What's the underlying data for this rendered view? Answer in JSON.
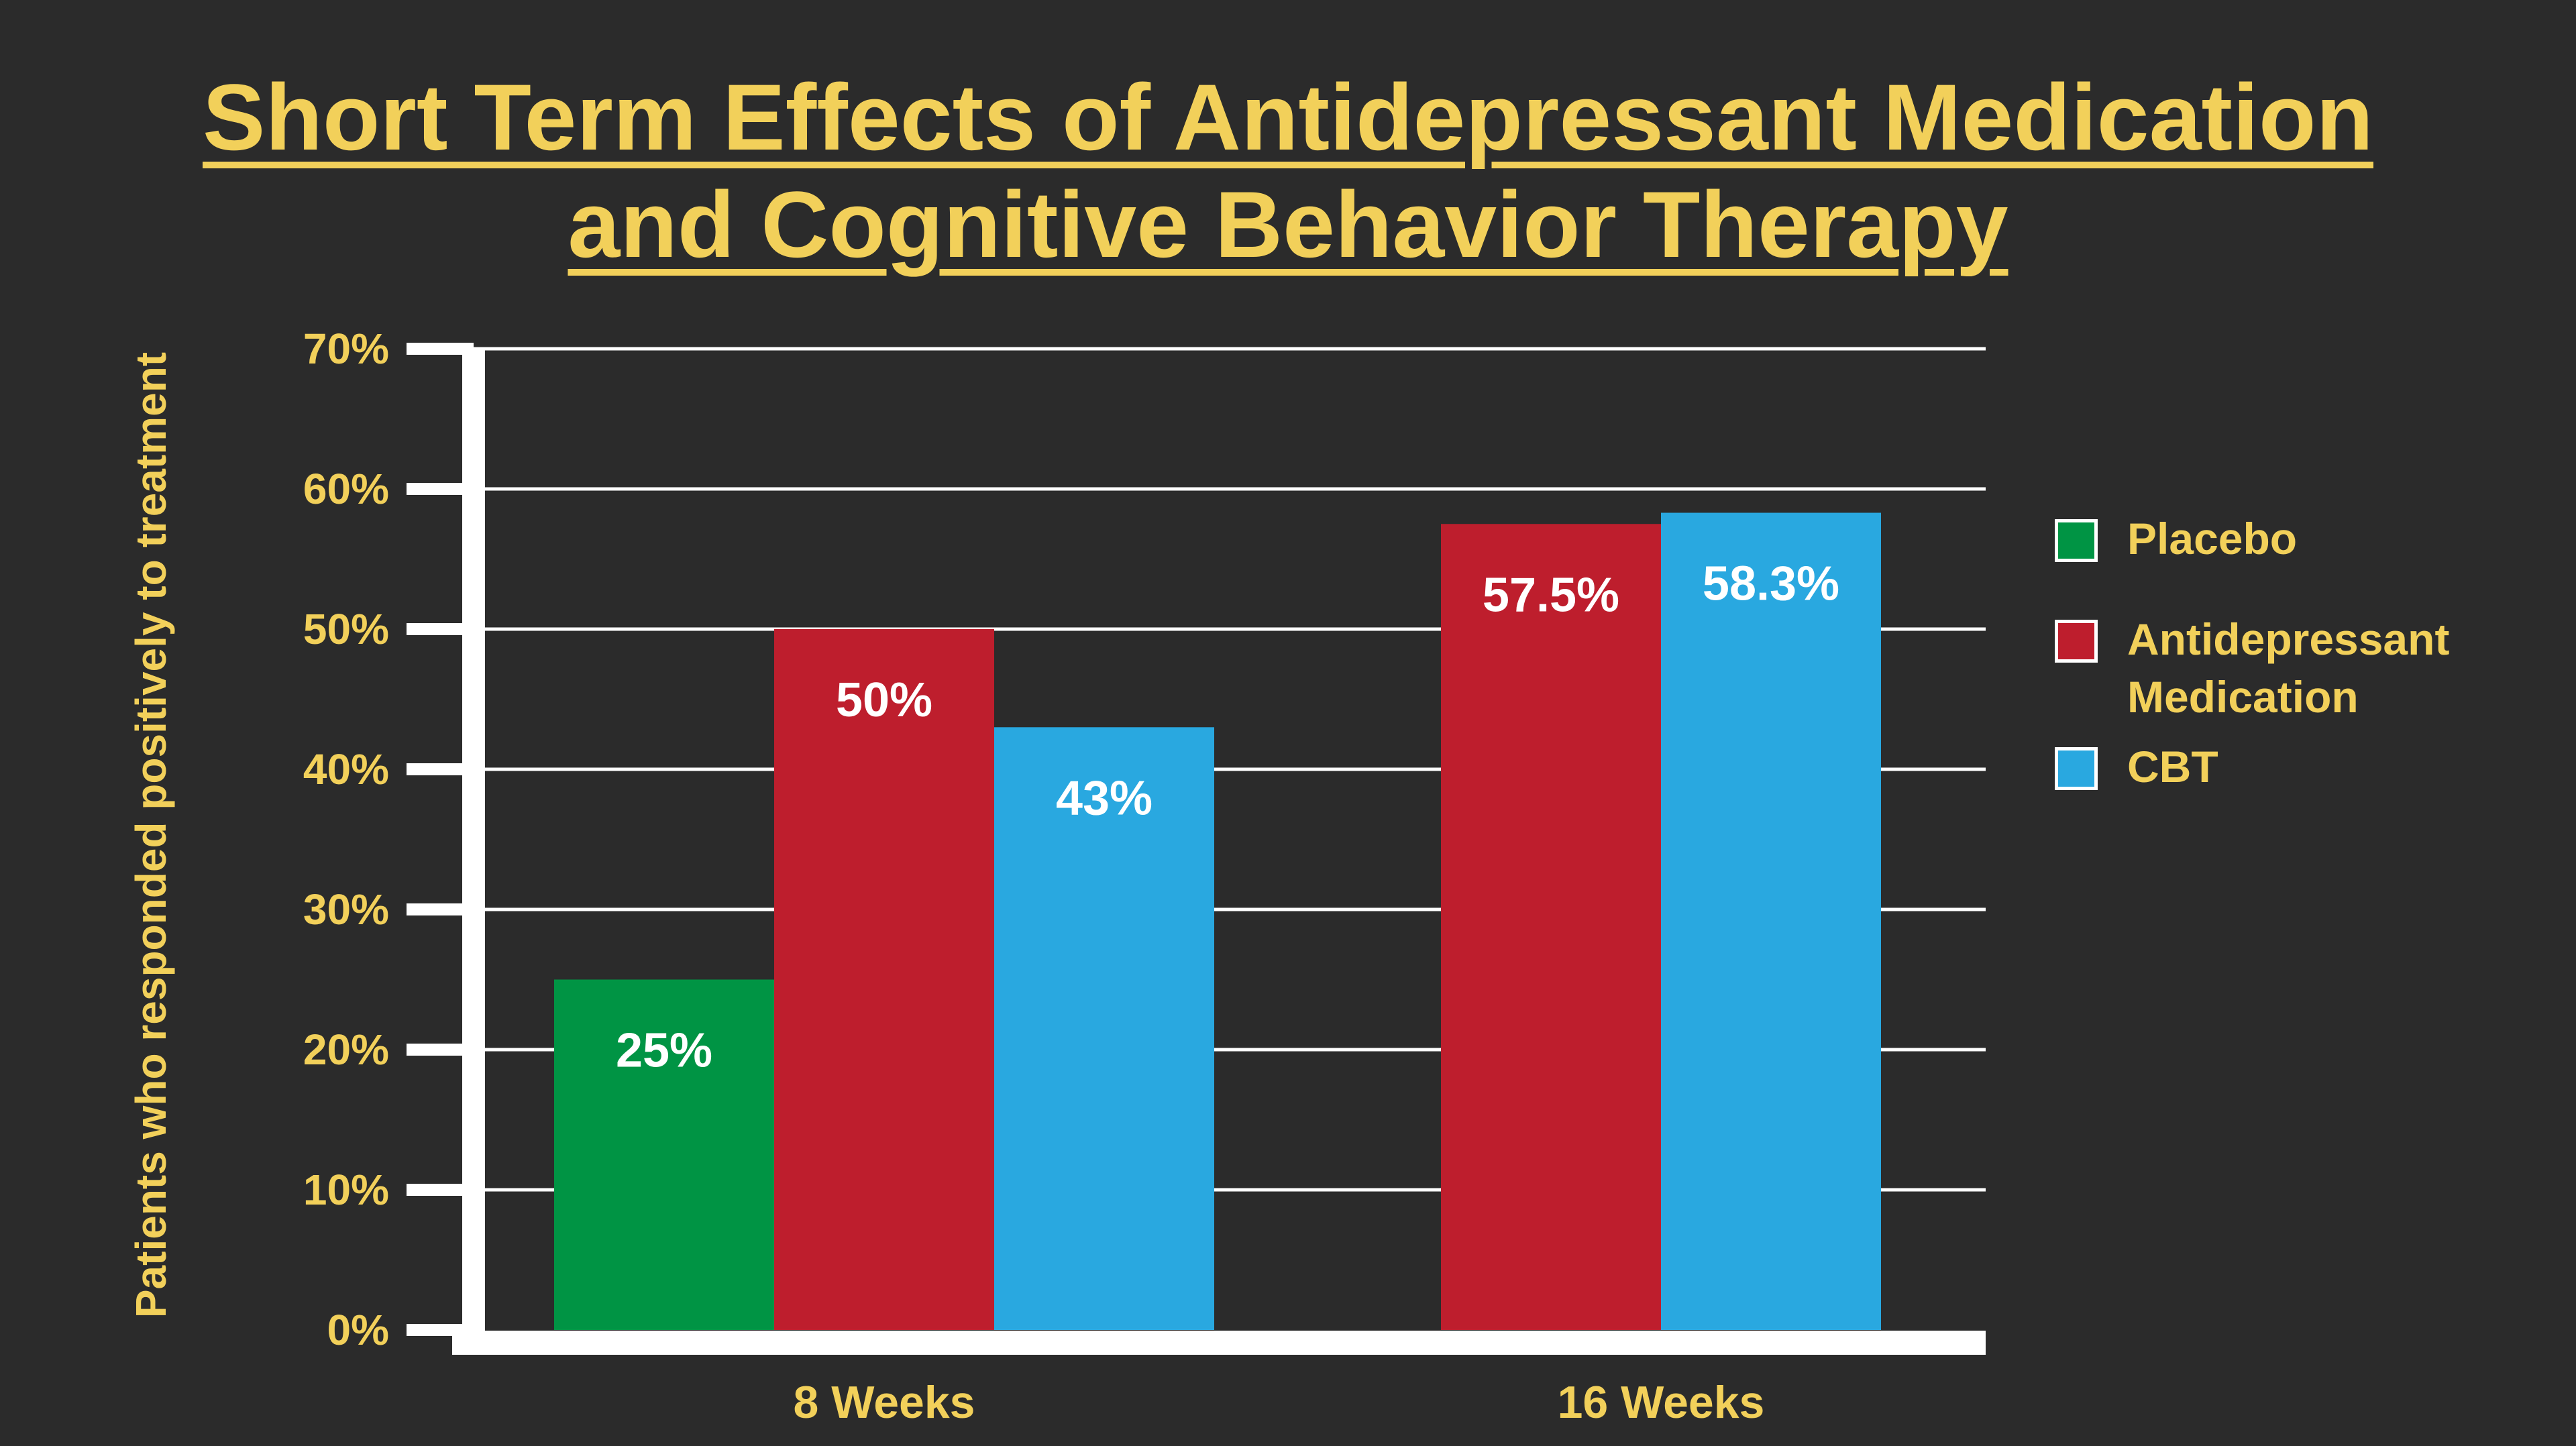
{
  "chart_data": {
    "type": "bar",
    "title_lines": [
      "Short Term Effects of Antidepressant Medication",
      "and Cognitive Behavior Therapy"
    ],
    "ylabel": "Patients who responded positively to treatment",
    "xlabel": "",
    "categories": [
      "8 Weeks",
      "16 Weeks"
    ],
    "ylim": [
      0,
      70
    ],
    "yticks": [
      0,
      10,
      20,
      30,
      40,
      50,
      60,
      70
    ],
    "ytick_labels": [
      "0%",
      "10%",
      "20%",
      "30%",
      "40%",
      "50%",
      "60%",
      "70%"
    ],
    "grid": true,
    "legend_position": "right",
    "series": [
      {
        "name": "Placebo",
        "color": "#009444",
        "values": [
          25,
          null
        ],
        "labels": [
          "25%",
          ""
        ]
      },
      {
        "name": "Antidepressant Medication",
        "legend_lines": [
          "Antidepressant",
          "Medication"
        ],
        "color": "#be1e2d",
        "values": [
          50,
          57.5
        ],
        "labels": [
          "50%",
          "57.5%"
        ]
      },
      {
        "name": "CBT",
        "color": "#29a8e0",
        "values": [
          43,
          58.3
        ],
        "labels": [
          "43%",
          "58.3%"
        ]
      }
    ],
    "colors": {
      "background": "#2b2b2b",
      "text_accent": "#f2d05a",
      "axis": "#ffffff",
      "bar_label": "#ffffff"
    }
  }
}
